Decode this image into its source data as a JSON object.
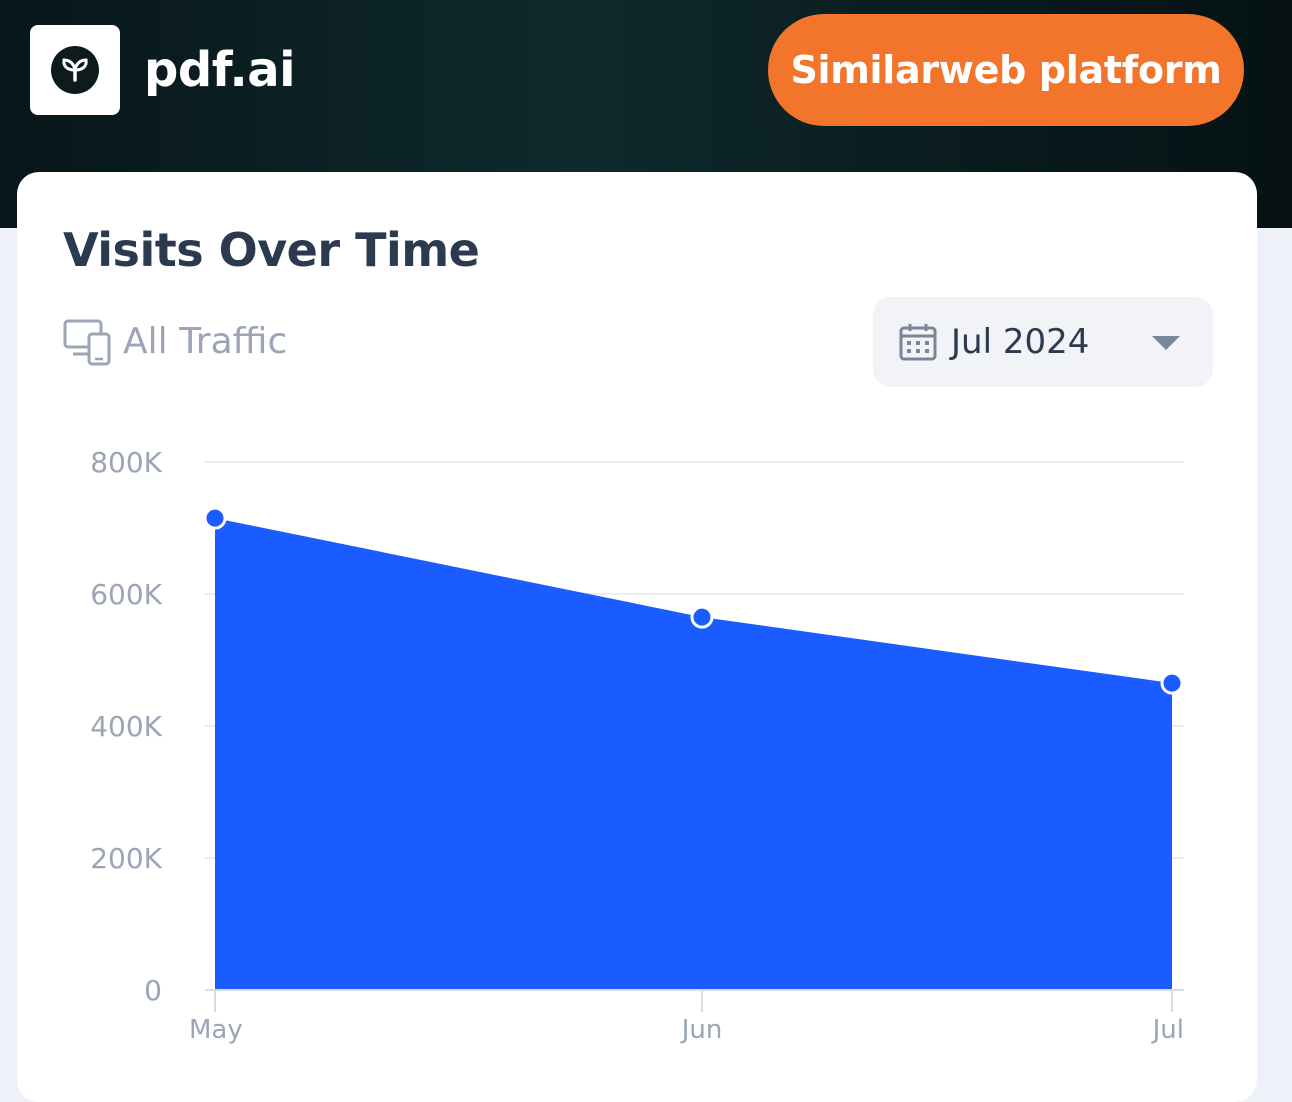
{
  "header": {
    "site_name": "pdf.ai",
    "logo_icon": "leaf-logo-icon",
    "platform_button_label": "Similarweb platform",
    "accent_color": "#f3742b"
  },
  "card": {
    "title": "Visits Over Time",
    "traffic_filter": {
      "icon": "devices-icon",
      "label": "All Traffic"
    },
    "date_select": {
      "icon": "calendar-icon",
      "value": "Jul 2024",
      "caret_icon": "caret-down-icon"
    }
  },
  "chart_data": {
    "type": "area",
    "categories": [
      "May",
      "Jun",
      "Jul"
    ],
    "values": [
      715000,
      565000,
      465000
    ],
    "ylim": [
      0,
      800000
    ],
    "yticks": [
      0,
      200000,
      400000,
      600000,
      800000
    ],
    "ytick_labels": [
      "0",
      "200K",
      "400K",
      "600K",
      "800K"
    ],
    "grid": true,
    "fill_color": "#1a5cff",
    "title": "",
    "xlabel": "",
    "ylabel": ""
  }
}
